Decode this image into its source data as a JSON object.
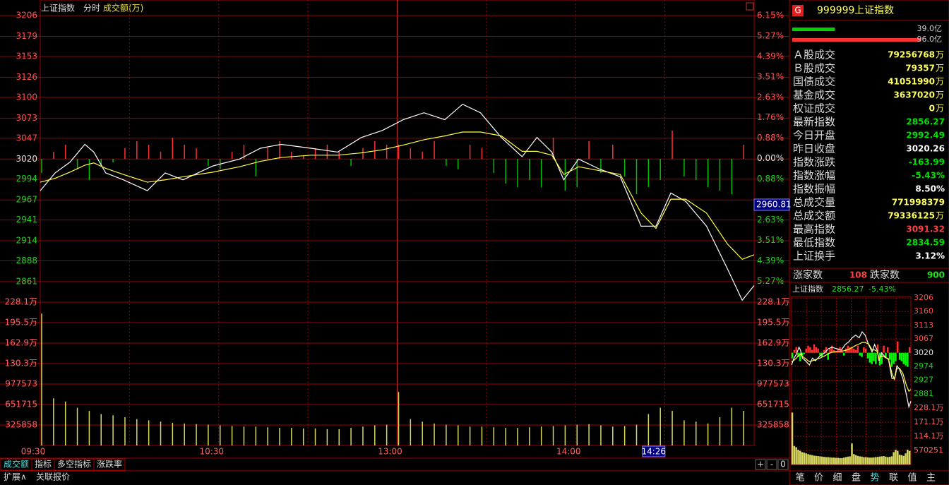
{
  "header": {
    "index": "上证指数",
    "mode": "分时",
    "metric": "成交额(万)"
  },
  "chart_data": {
    "type": "line",
    "price": {
      "ylim": [
        2834.5,
        3206
      ],
      "yticks": [
        3206,
        3179,
        3153,
        3126,
        3100,
        3073,
        3047,
        3020,
        2994,
        2967,
        2941,
        2914,
        2888,
        2861
      ],
      "prev_close": 3020.26,
      "y2lim": [
        -6.17,
        6.15
      ],
      "y2ticks": [
        {
          "value": 6.15,
          "label": "6.15%"
        },
        {
          "value": 5.27,
          "label": "5.27%"
        },
        {
          "value": 4.39,
          "label": "4.39%"
        },
        {
          "value": 3.51,
          "label": "3.51%"
        },
        {
          "value": 2.63,
          "label": "2.63%"
        },
        {
          "value": 1.76,
          "label": "1.76%"
        },
        {
          "value": 0.88,
          "label": "0.88%"
        },
        {
          "value": 0,
          "label": "0.00%"
        },
        {
          "value": -0.88,
          "label": "0.88%"
        },
        {
          "value": -2.63,
          "label": "2.63%"
        },
        {
          "value": -3.51,
          "label": "3.51%"
        },
        {
          "value": -4.39,
          "label": "4.39%"
        },
        {
          "value": -5.27,
          "label": "5.27%"
        }
      ],
      "crosshair": 2960.81,
      "x": [
        "09:30",
        "09:35",
        "09:40",
        "09:45",
        "09:48",
        "09:52",
        "09:58",
        "10:06",
        "10:12",
        "10:18",
        "10:28",
        "10:37",
        "10:44",
        "10:51",
        "11:01",
        "11:10",
        "11:18",
        "11:25",
        "13:02",
        "13:09",
        "13:16",
        "13:22",
        "13:28",
        "13:35",
        "13:42",
        "13:47",
        "13:52",
        "13:56",
        "14:01",
        "14:08",
        "14:15",
        "14:22",
        "14:27",
        "14:32",
        "14:37",
        "14:44",
        "14:51",
        "14:56",
        "15:00"
      ],
      "series": [
        {
          "name": "price",
          "color": "#ffffff",
          "values": [
            2979,
            3002,
            3016,
            3039,
            3029,
            3002,
            2993,
            2979,
            3002,
            2993,
            3011,
            3020,
            3034,
            3039,
            3034,
            3029,
            3048,
            3057,
            3071,
            3080,
            3071,
            3091,
            3080,
            3048,
            3023,
            3048,
            3029,
            2993,
            3020,
            3007,
            2997,
            2933,
            2933,
            2976,
            2965,
            2933,
            2878,
            2837,
            2856
          ]
        },
        {
          "name": "average",
          "color": "#ffff40",
          "values": [
            2990,
            2995,
            3003,
            3012,
            3015,
            3008,
            3000,
            2990,
            2993,
            2997,
            3003,
            3010,
            3017,
            3022,
            3025,
            3025,
            3028,
            3032,
            3038,
            3045,
            3050,
            3055,
            3055,
            3050,
            3030,
            3030,
            3025,
            3000,
            3010,
            3005,
            3000,
            2950,
            2930,
            2968,
            2968,
            2950,
            2910,
            2890,
            2896
          ]
        }
      ]
    },
    "bars_x": [
      "09:30",
      "09:34",
      "09:38",
      "09:42",
      "09:46",
      "09:50",
      "09:54",
      "09:58",
      "10:02",
      "10:06",
      "10:10",
      "10:14",
      "10:18",
      "10:22",
      "10:26",
      "10:30",
      "10:34",
      "10:38",
      "10:42",
      "10:46",
      "10:50",
      "10:54",
      "10:58",
      "11:02",
      "11:06",
      "11:10",
      "11:14",
      "11:18",
      "11:22",
      "11:26",
      "13:00",
      "13:04",
      "13:08",
      "13:12",
      "13:16",
      "13:20",
      "13:24",
      "13:28",
      "13:32",
      "13:36",
      "13:40",
      "13:44",
      "13:48",
      "13:52",
      "13:56",
      "14:00",
      "14:04",
      "14:08",
      "14:12",
      "14:16",
      "14:20",
      "14:24",
      "14:28",
      "14:32",
      "14:36",
      "14:40",
      "14:44",
      "14:48",
      "14:52",
      "14:56"
    ],
    "strength": {
      "up_color": "#ff3030",
      "down_color": "#00c000",
      "values": [
        -20,
        10,
        20,
        -15,
        -30,
        -10,
        -5,
        15,
        25,
        20,
        10,
        30,
        20,
        15,
        -10,
        -15,
        10,
        20,
        -25,
        15,
        25,
        10,
        5,
        15,
        20,
        10,
        -10,
        15,
        25,
        20,
        20,
        15,
        10,
        25,
        -10,
        -15,
        20,
        15,
        -20,
        -35,
        -40,
        -30,
        -40,
        30,
        -45,
        -40,
        25,
        -20,
        20,
        -25,
        -50,
        -40,
        -30,
        40,
        -25,
        -30,
        -40,
        -45,
        -50,
        20
      ]
    },
    "volume": {
      "color": "#d8d860",
      "ylim": [
        0,
        2281000
      ],
      "yticks": [
        {
          "value": 2281000,
          "label": "228.1万"
        },
        {
          "value": 1955000,
          "label": "195.5万"
        },
        {
          "value": 1629000,
          "label": "162.9万"
        },
        {
          "value": 1303000,
          "label": "130.3万"
        },
        977573,
        651715,
        325858
      ],
      "values": [
        2100000,
        750000,
        700000,
        600000,
        550000,
        500000,
        480000,
        450000,
        420000,
        400000,
        380000,
        360000,
        350000,
        340000,
        330000,
        320000,
        310000,
        300000,
        300000,
        290000,
        280000,
        280000,
        270000,
        270000,
        260000,
        260000,
        280000,
        300000,
        320000,
        330000,
        850000,
        420000,
        380000,
        350000,
        330000,
        320000,
        300000,
        300000,
        290000,
        280000,
        280000,
        290000,
        300000,
        310000,
        320000,
        330000,
        340000,
        320000,
        300000,
        310000,
        330000,
        500000,
        600000,
        550000,
        400000,
        380000,
        350000,
        450000,
        600000,
        550000
      ]
    },
    "xticks": [
      "09:30",
      "10:30",
      "13:00",
      "14:00"
    ],
    "cursor_time": "14:26"
  },
  "tabs": [
    "成交额",
    "指标",
    "多空指标",
    "涨跌率"
  ],
  "ext_tabs": [
    "扩展∧",
    "关联报价"
  ],
  "buttons": [
    "+",
    "-",
    "0"
  ],
  "sidebar": {
    "badge": "G",
    "code": "999999",
    "name": "上证指数",
    "buy": {
      "value": 39.0,
      "label": "39.0亿"
    },
    "sell": {
      "value": 96.0,
      "label": "96.0亿"
    },
    "rows": [
      {
        "label": "Ａ股成交",
        "value": "79256768",
        "unit": "万",
        "color": "#ffff60"
      },
      {
        "label": "Ｂ股成交",
        "value": "79357",
        "unit": "万",
        "color": "#ffff60"
      },
      {
        "label": "国债成交",
        "value": "41051990",
        "unit": "万",
        "color": "#ffff60"
      },
      {
        "label": "基金成交",
        "value": "3637020",
        "unit": "万",
        "color": "#ffff60"
      },
      {
        "label": "权证成交",
        "value": "0",
        "unit": "万",
        "color": "#ffff60"
      },
      {
        "label": "最新指数",
        "value": "2856.27",
        "color": "#00e000"
      },
      {
        "label": "今日开盘",
        "value": "2992.49",
        "color": "#00e000"
      },
      {
        "label": "昨日收盘",
        "value": "3020.26",
        "color": "#ffffff"
      },
      {
        "label": "指数涨跌",
        "value": "-163.99",
        "color": "#00e000"
      },
      {
        "label": "指数涨幅",
        "value": "-5.43%",
        "color": "#00e000"
      },
      {
        "label": "指数振幅",
        "value": "8.50%",
        "color": "#ffffff"
      },
      {
        "label": "总成交量",
        "value": "771998379",
        "color": "#ffff60"
      },
      {
        "label": "总成交额",
        "value": "79336125",
        "unit": "万",
        "color": "#ffff60"
      },
      {
        "label": "最高指数",
        "value": "3091.32",
        "color": "#ff4040"
      },
      {
        "label": "最低指数",
        "value": "2834.59",
        "color": "#00e000"
      },
      {
        "label": "上证换手",
        "value": "3.12%",
        "color": "#ffffff"
      }
    ],
    "advance_label": "涨家数",
    "advance": "108",
    "decline_label": "跌家数",
    "decline": "900",
    "mini": {
      "title": "上证指数",
      "last": "2856.27",
      "change": "-5.43%",
      "ylim": [
        2833,
        3206
      ],
      "yticks": [
        3206,
        3160,
        3113,
        3067,
        3020,
        2974,
        2927,
        2881
      ],
      "vol_ylim": [
        0,
        2281000
      ],
      "vol_yticks": [
        {
          "value": 2281000,
          "label": "228.1万"
        },
        {
          "value": 1711000,
          "label": "171.1万"
        },
        {
          "value": 1141000,
          "label": "114.1万"
        },
        570251
      ]
    },
    "tabs": [
      "笔",
      "价",
      "细",
      "盘",
      "势",
      "联",
      "值",
      "主"
    ]
  }
}
